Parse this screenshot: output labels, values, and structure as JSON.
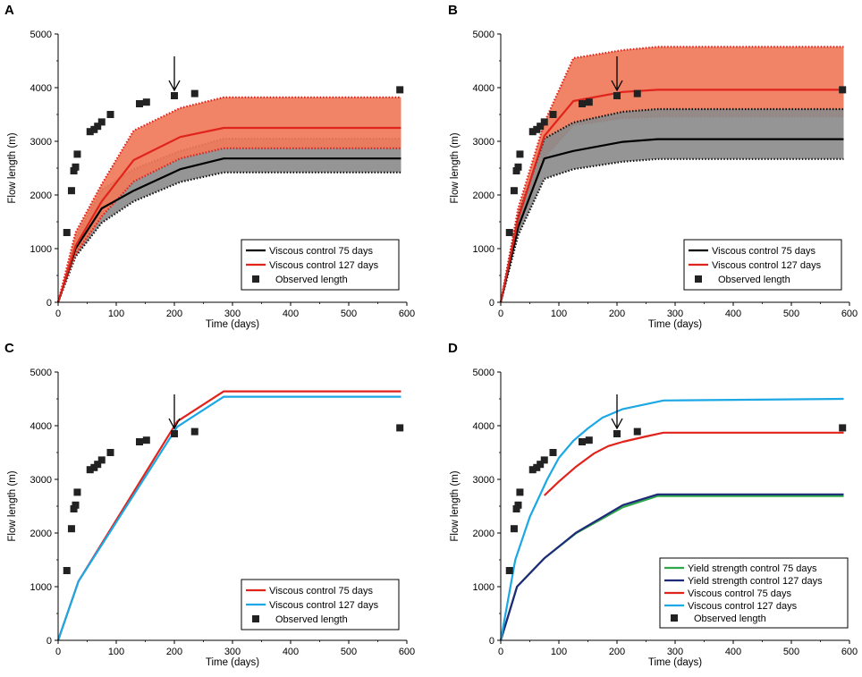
{
  "chart_data": [
    {
      "panel": "A",
      "type": "line",
      "xlabel": "Time (days)",
      "ylabel": "Flow length (m)",
      "xlim": [
        0,
        600
      ],
      "ylim": [
        0,
        5000
      ],
      "xticks": [
        0,
        100,
        200,
        300,
        400,
        500,
        600
      ],
      "yticks": [
        0,
        1000,
        2000,
        3000,
        4000,
        5000
      ],
      "arrow_x": 200,
      "bands": [
        {
          "name": "Viscous control 75 days range",
          "color": "#8c8c8c",
          "edge_color": "#111111",
          "x": [
            0,
            30,
            75,
            130,
            210,
            285,
            590
          ],
          "lower": [
            0,
            850,
            1480,
            1880,
            2240,
            2420,
            2420
          ],
          "upper": [
            0,
            1200,
            2100,
            2480,
            2820,
            3050,
            3050
          ]
        },
        {
          "name": "Viscous control 127 days range",
          "color": "#f07a5a",
          "edge_color": "#e0231b",
          "x": [
            0,
            30,
            75,
            130,
            210,
            285,
            590
          ],
          "lower": [
            0,
            900,
            1600,
            2250,
            2680,
            2870,
            2870
          ],
          "upper": [
            0,
            1300,
            2200,
            3200,
            3620,
            3820,
            3820
          ]
        }
      ],
      "series": [
        {
          "name": "Viscous control 75 days",
          "color": "#000000",
          "x": [
            0,
            30,
            75,
            130,
            210,
            285,
            590
          ],
          "values": [
            0,
            1000,
            1750,
            2080,
            2480,
            2680,
            2680
          ]
        },
        {
          "name": "Viscous control 127 days",
          "color": "#e0231b",
          "x": [
            0,
            30,
            75,
            130,
            210,
            285,
            590
          ],
          "values": [
            0,
            1050,
            1880,
            2650,
            3080,
            3250,
            3250
          ]
        }
      ],
      "observed": {
        "name": "Observed length",
        "x": [
          15,
          23,
          27,
          30,
          33,
          55,
          62,
          68,
          75,
          90,
          140,
          152,
          200,
          235,
          588
        ],
        "values": [
          1300,
          2080,
          2450,
          2520,
          2760,
          3180,
          3220,
          3280,
          3360,
          3500,
          3700,
          3730,
          3850,
          3890,
          3960
        ]
      },
      "legend": [
        "Viscous control 75 days",
        "Viscous control 127 days",
        "Observed length"
      ]
    },
    {
      "panel": "B",
      "type": "line",
      "xlabel": "Time (days)",
      "ylabel": "Flow length (m)",
      "xlim": [
        0,
        600
      ],
      "ylim": [
        0,
        5000
      ],
      "xticks": [
        0,
        100,
        200,
        300,
        400,
        500,
        600
      ],
      "yticks": [
        0,
        1000,
        2000,
        3000,
        4000,
        5000
      ],
      "arrow_x": 200,
      "bands": [
        {
          "name": "Viscous control 127 days range",
          "color": "#f07a5a",
          "edge_color": "#e0231b",
          "x": [
            0,
            30,
            75,
            125,
            210,
            270,
            590
          ],
          "lower": [
            0,
            1350,
            2700,
            3300,
            3430,
            3460,
            3460
          ],
          "upper": [
            0,
            1750,
            3350,
            4550,
            4700,
            4760,
            4760
          ]
        },
        {
          "name": "Viscous control 75 days range",
          "color": "#8c8c8c",
          "edge_color": "#111111",
          "x": [
            0,
            30,
            75,
            125,
            210,
            270,
            590
          ],
          "lower": [
            0,
            1250,
            2300,
            2480,
            2620,
            2670,
            2670
          ],
          "upper": [
            0,
            1600,
            3050,
            3350,
            3550,
            3600,
            3600
          ]
        }
      ],
      "series": [
        {
          "name": "Viscous control 75 days",
          "color": "#000000",
          "x": [
            0,
            30,
            75,
            125,
            210,
            270,
            590
          ],
          "values": [
            0,
            1400,
            2680,
            2820,
            2990,
            3040,
            3040
          ]
        },
        {
          "name": "Viscous control 127 days",
          "color": "#e0231b",
          "x": [
            0,
            30,
            75,
            125,
            210,
            270,
            590
          ],
          "values": [
            0,
            1550,
            3100,
            3750,
            3920,
            3960,
            3960
          ]
        }
      ],
      "observed": {
        "name": "Observed length",
        "x": [
          15,
          23,
          27,
          30,
          33,
          55,
          62,
          68,
          75,
          90,
          140,
          152,
          200,
          235,
          588
        ],
        "values": [
          1300,
          2080,
          2450,
          2520,
          2760,
          3180,
          3220,
          3280,
          3360,
          3500,
          3700,
          3730,
          3850,
          3890,
          3960
        ]
      },
      "legend": [
        "Viscous control 75 days",
        "Viscous control 127 days",
        "Observed length"
      ]
    },
    {
      "panel": "C",
      "type": "line",
      "xlabel": "Time (days)",
      "ylabel": "Flow length (m)",
      "xlim": [
        0,
        600
      ],
      "ylim": [
        0,
        5000
      ],
      "xticks": [
        0,
        100,
        200,
        300,
        400,
        500,
        600
      ],
      "yticks": [
        0,
        1000,
        2000,
        3000,
        4000,
        5000
      ],
      "arrow_x": 200,
      "bands": [],
      "series": [
        {
          "name": "Viscous control 75 days",
          "color": "#e0231b",
          "x": [
            0,
            35,
            205,
            285,
            590
          ],
          "values": [
            0,
            1100,
            4080,
            4640,
            4640
          ]
        },
        {
          "name": "Viscous control 127 days",
          "color": "#1ca8e4",
          "x": [
            0,
            35,
            205,
            285,
            590
          ],
          "values": [
            0,
            1100,
            3980,
            4540,
            4540
          ]
        }
      ],
      "observed": {
        "name": "Observed length",
        "x": [
          15,
          23,
          27,
          30,
          33,
          55,
          62,
          68,
          75,
          90,
          140,
          152,
          200,
          235,
          588
        ],
        "values": [
          1300,
          2080,
          2450,
          2520,
          2760,
          3180,
          3220,
          3280,
          3360,
          3500,
          3700,
          3730,
          3850,
          3890,
          3960
        ]
      },
      "legend": [
        "Viscous control 75 days",
        "Viscous control 127 days",
        "Observed length"
      ]
    },
    {
      "panel": "D",
      "type": "line",
      "xlabel": "Time (days)",
      "ylabel": "Flow length (m)",
      "xlim": [
        0,
        600
      ],
      "ylim": [
        0,
        5000
      ],
      "xticks": [
        0,
        100,
        200,
        300,
        400,
        500,
        600
      ],
      "yticks": [
        0,
        1000,
        2000,
        3000,
        4000,
        5000
      ],
      "arrow_x": 200,
      "bands": [],
      "series": [
        {
          "name": "Yield strength control 75 days",
          "color": "#2ea84a",
          "x": [
            0,
            28,
            75,
            130,
            210,
            270,
            590
          ],
          "values": [
            0,
            1000,
            1530,
            2000,
            2480,
            2690,
            2690
          ]
        },
        {
          "name": "Yield strength control 127 days",
          "color": "#1f2a7a",
          "x": [
            0,
            28,
            75,
            130,
            210,
            270,
            590
          ],
          "values": [
            0,
            1000,
            1530,
            2010,
            2520,
            2720,
            2720
          ]
        },
        {
          "name": "Viscous control 75 days",
          "color": "#e0231b",
          "x": [
            75,
            100,
            130,
            160,
            185,
            210,
            250,
            280,
            590
          ],
          "values": [
            2700,
            2960,
            3240,
            3480,
            3620,
            3700,
            3800,
            3870,
            3870
          ]
        },
        {
          "name": "Viscous control 127 days",
          "color": "#1ca8e4",
          "x": [
            0,
            25,
            50,
            80,
            100,
            125,
            150,
            175,
            210,
            280,
            590
          ],
          "values": [
            0,
            1500,
            2300,
            3000,
            3400,
            3720,
            3950,
            4150,
            4310,
            4470,
            4500
          ]
        }
      ],
      "observed": {
        "name": "Observed length",
        "x": [
          15,
          23,
          27,
          30,
          33,
          55,
          62,
          68,
          75,
          90,
          140,
          152,
          200,
          235,
          588
        ],
        "values": [
          1300,
          2080,
          2450,
          2520,
          2760,
          3180,
          3220,
          3280,
          3360,
          3500,
          3700,
          3730,
          3850,
          3890,
          3960
        ]
      },
      "legend": [
        "Yield strength control 75 days",
        "Yield strength control 127 days",
        "Viscous control 75 days",
        "Viscous control 127 days",
        "Observed length"
      ]
    }
  ]
}
